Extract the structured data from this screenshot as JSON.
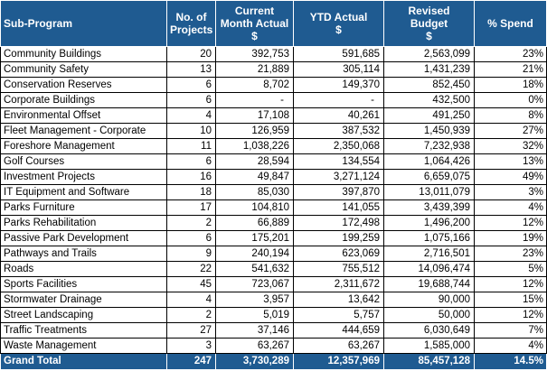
{
  "columns": {
    "sub_program": "Sub-Program",
    "no_projects_1": "No. of",
    "no_projects_2": "Projects",
    "current_1": "Current",
    "current_2": "Month Actual",
    "current_unit": "$",
    "ytd_1": "YTD Actual",
    "ytd_unit": "$",
    "revised_1": "Revised",
    "revised_2": "Budget",
    "revised_unit": "$",
    "spend": "% Spend"
  },
  "rows": [
    {
      "name": "Community Buildings",
      "projects": "20",
      "current": "392,753",
      "ytd": "591,685",
      "budget": "2,563,099",
      "spend": "23%"
    },
    {
      "name": "Community Safety",
      "projects": "13",
      "current": "21,889",
      "ytd": "305,114",
      "budget": "1,431,239",
      "spend": "21%"
    },
    {
      "name": "Conservation Reserves",
      "projects": "6",
      "current": "8,702",
      "ytd": "149,370",
      "budget": "852,450",
      "spend": "18%"
    },
    {
      "name": "Corporate Buildings",
      "projects": "6",
      "current": "-",
      "ytd": "-",
      "budget": "432,500",
      "spend": "0%"
    },
    {
      "name": "Environmental Offset",
      "projects": "4",
      "current": "17,108",
      "ytd": "40,261",
      "budget": "491,250",
      "spend": "8%"
    },
    {
      "name": "Fleet Management - Corporate",
      "projects": "10",
      "current": "126,959",
      "ytd": "387,532",
      "budget": "1,450,939",
      "spend": "27%"
    },
    {
      "name": "Foreshore Management",
      "projects": "11",
      "current": "1,038,226",
      "ytd": "2,350,068",
      "budget": "7,232,938",
      "spend": "32%"
    },
    {
      "name": "Golf Courses",
      "projects": "6",
      "current": "28,594",
      "ytd": "134,554",
      "budget": "1,064,426",
      "spend": "13%"
    },
    {
      "name": "Investment Projects",
      "projects": "16",
      "current": "49,847",
      "ytd": "3,271,124",
      "budget": "6,659,075",
      "spend": "49%"
    },
    {
      "name": "IT Equipment and Software",
      "projects": "18",
      "current": "85,030",
      "ytd": "397,870",
      "budget": "13,011,079",
      "spend": "3%"
    },
    {
      "name": "Parks Furniture",
      "projects": "17",
      "current": "104,810",
      "ytd": "141,055",
      "budget": "3,439,399",
      "spend": "4%"
    },
    {
      "name": "Parks Rehabilitation",
      "projects": "2",
      "current": "66,889",
      "ytd": "172,498",
      "budget": "1,496,200",
      "spend": "12%"
    },
    {
      "name": "Passive Park Development",
      "projects": "6",
      "current": "175,201",
      "ytd": "199,259",
      "budget": "1,075,166",
      "spend": "19%"
    },
    {
      "name": "Pathways and Trails",
      "projects": "9",
      "current": "240,194",
      "ytd": "623,069",
      "budget": "2,716,501",
      "spend": "23%"
    },
    {
      "name": "Roads",
      "projects": "22",
      "current": "541,632",
      "ytd": "755,512",
      "budget": "14,096,474",
      "spend": "5%"
    },
    {
      "name": "Sports Facilities",
      "projects": "45",
      "current": "723,067",
      "ytd": "2,311,672",
      "budget": "19,688,744",
      "spend": "12%"
    },
    {
      "name": "Stormwater Drainage",
      "projects": "4",
      "current": "3,957",
      "ytd": "13,642",
      "budget": "90,000",
      "spend": "15%"
    },
    {
      "name": "Street Landscaping",
      "projects": "2",
      "current": "5,019",
      "ytd": "5,757",
      "budget": "50,000",
      "spend": "12%"
    },
    {
      "name": "Traffic Treatments",
      "projects": "27",
      "current": "37,146",
      "ytd": "444,659",
      "budget": "6,030,649",
      "spend": "7%"
    },
    {
      "name": "Waste Management",
      "projects": "3",
      "current": "63,267",
      "ytd": "63,267",
      "budget": "1,585,000",
      "spend": "4%"
    }
  ],
  "total": {
    "name": "Grand Total",
    "projects": "247",
    "current": "3,730,289",
    "ytd": "12,357,969",
    "budget": "85,457,128",
    "spend": "14.5%"
  },
  "colors": {
    "header_bg": "#1f5b91",
    "header_text": "#ffffff",
    "body_text": "#000000",
    "grid": "#000000"
  }
}
